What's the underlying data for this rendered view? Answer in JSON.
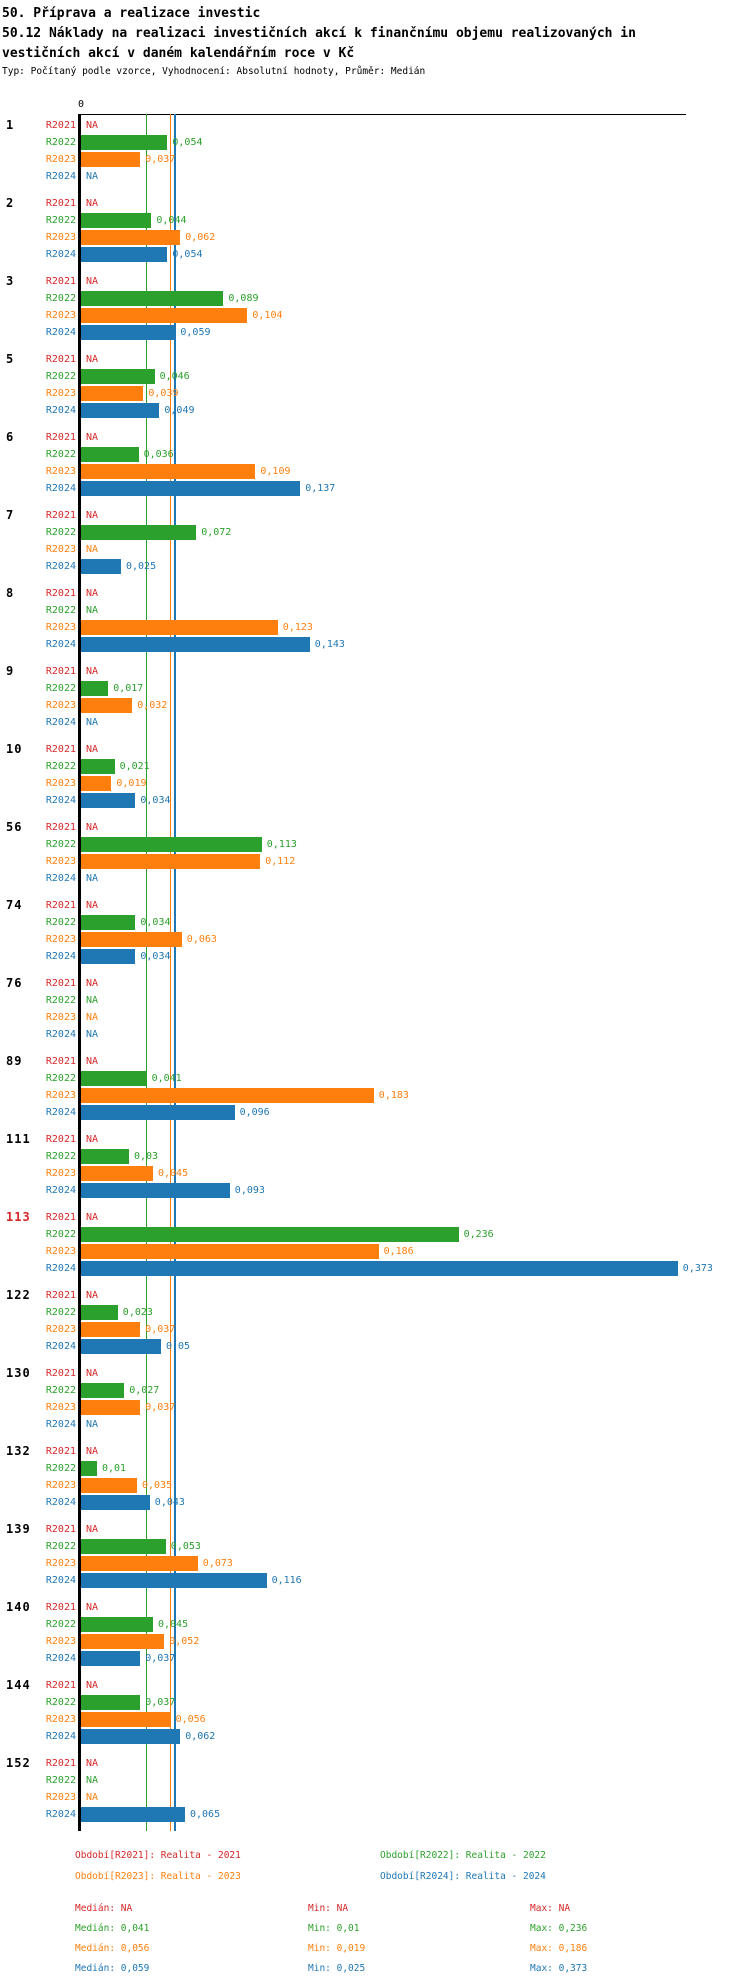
{
  "header": {
    "title": "50. Příprava a realizace investic",
    "subtitle_line1": "50.12 Náklady na realizaci investičních akcí k finančnímu objemu realizovaných in",
    "subtitle_line2": "vestičních akcí v daném kalendářním roce v Kč",
    "meta": "Typ: Počítaný podle vzorce, Vyhodnocení: Absolutní hodnoty, Průměr: Medián"
  },
  "chart_data": {
    "type": "bar",
    "orientation": "horizontal",
    "xlabel": "",
    "ylabel": "",
    "axis_zero_label": "0",
    "na_label": "NA",
    "value_decimal_separator": ",",
    "xlim": [
      0,
      0.38
    ],
    "grid": false,
    "series": [
      {
        "name": "R2021",
        "color": "#d62728",
        "median": null,
        "min": null,
        "max": null
      },
      {
        "name": "R2022",
        "color": "#2ca02c",
        "median": 0.041,
        "min": 0.01,
        "max": 0.236
      },
      {
        "name": "R2023",
        "color": "#ff7f0e",
        "median": 0.056,
        "min": 0.019,
        "max": 0.186
      },
      {
        "name": "R2024",
        "color": "#1f77b4",
        "median": 0.059,
        "min": 0.025,
        "max": 0.373
      }
    ],
    "groups": [
      {
        "id": "1",
        "highlight": false,
        "values": [
          null,
          0.054,
          0.037,
          null
        ]
      },
      {
        "id": "2",
        "highlight": false,
        "values": [
          null,
          0.044,
          0.062,
          0.054
        ]
      },
      {
        "id": "3",
        "highlight": false,
        "values": [
          null,
          0.089,
          0.104,
          0.059
        ]
      },
      {
        "id": "5",
        "highlight": false,
        "values": [
          null,
          0.046,
          0.039,
          0.049
        ]
      },
      {
        "id": "6",
        "highlight": false,
        "values": [
          null,
          0.036,
          0.109,
          0.137
        ]
      },
      {
        "id": "7",
        "highlight": false,
        "values": [
          null,
          0.072,
          null,
          0.025
        ]
      },
      {
        "id": "8",
        "highlight": false,
        "values": [
          null,
          null,
          0.123,
          0.143
        ]
      },
      {
        "id": "9",
        "highlight": false,
        "values": [
          null,
          0.017,
          0.032,
          null
        ]
      },
      {
        "id": "10",
        "highlight": false,
        "values": [
          null,
          0.021,
          0.019,
          0.034
        ]
      },
      {
        "id": "56",
        "highlight": false,
        "values": [
          null,
          0.113,
          0.112,
          null
        ]
      },
      {
        "id": "74",
        "highlight": false,
        "values": [
          null,
          0.034,
          0.063,
          0.034
        ]
      },
      {
        "id": "76",
        "highlight": false,
        "values": [
          null,
          null,
          null,
          null
        ]
      },
      {
        "id": "89",
        "highlight": false,
        "values": [
          null,
          0.041,
          0.183,
          0.096
        ]
      },
      {
        "id": "111",
        "highlight": false,
        "values": [
          null,
          0.03,
          0.045,
          0.093
        ]
      },
      {
        "id": "113",
        "highlight": true,
        "values": [
          null,
          0.236,
          0.186,
          0.373
        ]
      },
      {
        "id": "122",
        "highlight": false,
        "values": [
          null,
          0.023,
          0.037,
          0.05
        ]
      },
      {
        "id": "130",
        "highlight": false,
        "values": [
          null,
          0.027,
          0.037,
          null
        ]
      },
      {
        "id": "132",
        "highlight": false,
        "values": [
          null,
          0.01,
          0.035,
          0.043
        ]
      },
      {
        "id": "139",
        "highlight": false,
        "values": [
          null,
          0.053,
          0.073,
          0.116
        ]
      },
      {
        "id": "140",
        "highlight": false,
        "values": [
          null,
          0.045,
          0.052,
          0.037
        ]
      },
      {
        "id": "144",
        "highlight": false,
        "values": [
          null,
          0.037,
          0.056,
          0.062
        ]
      },
      {
        "id": "152",
        "highlight": false,
        "values": [
          null,
          null,
          null,
          0.065
        ]
      }
    ],
    "legend": [
      {
        "label": "Období[R2021]: Realita - 2021",
        "color": "#d62728",
        "row": 0,
        "col": 0
      },
      {
        "label": "Období[R2022]: Realita - 2022",
        "color": "#2ca02c",
        "row": 0,
        "col": 1
      },
      {
        "label": "Období[R2023]: Realita - 2023",
        "color": "#ff7f0e",
        "row": 1,
        "col": 0
      },
      {
        "label": "Období[R2024]: Realita - 2024",
        "color": "#1f77b4",
        "row": 1,
        "col": 1
      }
    ],
    "stats_labels": {
      "median": "Medián",
      "min": "Min",
      "max": "Max"
    },
    "legend_position": "bottom"
  },
  "highlight_color": "#d62728"
}
